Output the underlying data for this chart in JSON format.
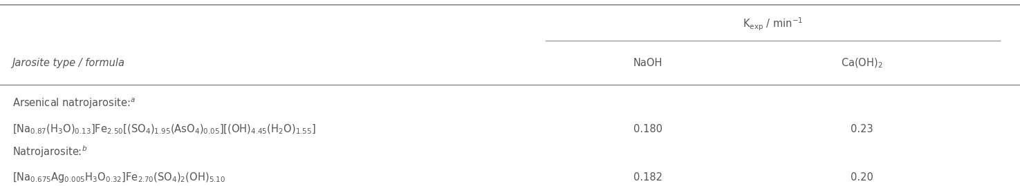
{
  "col_header_main": "K$_\\mathrm{exp}$ / min$^{-1}$",
  "col_header_left": "Jarosite type / formula",
  "col_header_naoh": "NaOH",
  "col_header_caoh2": "Ca(OH)$_2$",
  "row1_label": "Arsenical natrojarosite:$^a$",
  "row1_formula": "[Na$_{0.87}$(H$_3$O)$_{0.13}$]Fe$_{2.50}$[(SO$_4$)$_{1.95}$(AsO$_4$)$_{0.05}$][(OH)$_{4.45}$(H$_2$O)$_{1.55}$]",
  "row1_naoh": "0.180",
  "row1_caoh2": "0.23",
  "row2_label": "Natrojarosite:$^b$",
  "row2_formula": "[Na$_{0.675}$Ag$_{0.005}$H$_3$O$_{0.32}$]Fe$_{2.70}$(SO$_4$)$_2$(OH)$_{5.10}$",
  "row2_naoh": "0.182",
  "row2_caoh2": "0.20",
  "text_color": "#555555",
  "line_color": "#888888",
  "fontsize": 10.5
}
